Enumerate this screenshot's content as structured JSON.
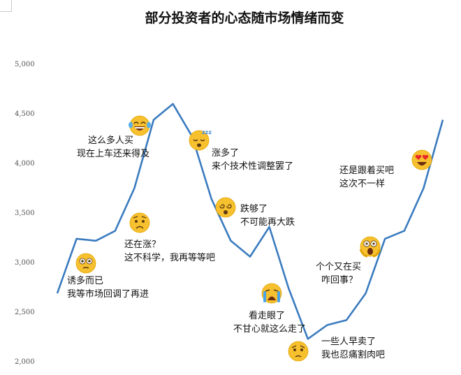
{
  "chart_data": {
    "type": "line",
    "title": "部分投资者的心态随市场情绪而变",
    "xlabel": "",
    "ylabel": "",
    "ylim": [
      2000,
      5000
    ],
    "yticks": [
      "2,000",
      "2,500",
      "3,000",
      "3,500",
      "4,000",
      "4,500",
      "5,000"
    ],
    "grid": false,
    "line_color": "#3a7bbf",
    "series": [
      {
        "values": [
          2690,
          3240,
          3220,
          3320,
          3750,
          4440,
          4600,
          4270,
          3640,
          3220,
          3060,
          3360,
          2740,
          2230,
          2370,
          2420,
          2690,
          3240,
          3320,
          3750,
          4440
        ]
      }
    ],
    "annotations": [
      {
        "emoji": "hmm",
        "lines": [
          "诱多而已",
          "我等市场回调了再进"
        ]
      },
      {
        "emoji": "laughing",
        "lines": [
          "这么多人买",
          "现在上车还来得及"
        ]
      },
      {
        "emoji": "worried",
        "lines": [
          "还在涨？",
          "这不科学，我再等等吧"
        ]
      },
      {
        "emoji": "sleepy",
        "lines": [
          "涨多了",
          "来个技术性调整罢了"
        ]
      },
      {
        "emoji": "dizzy",
        "lines": [
          "跌够了",
          "不可能再大跌"
        ]
      },
      {
        "emoji": "crying",
        "lines": [
          "看走眼了",
          "不甘心就这么走了"
        ]
      },
      {
        "emoji": "sad",
        "lines": [
          "一些人早卖了",
          "我也忍痛割肉吧"
        ]
      },
      {
        "emoji": "shocked",
        "lines": [
          "个个又在买",
          "咋回事？"
        ]
      },
      {
        "emoji": "heart-eyes",
        "lines": [
          "还是跟着买吧",
          "这次不一样"
        ]
      }
    ]
  }
}
